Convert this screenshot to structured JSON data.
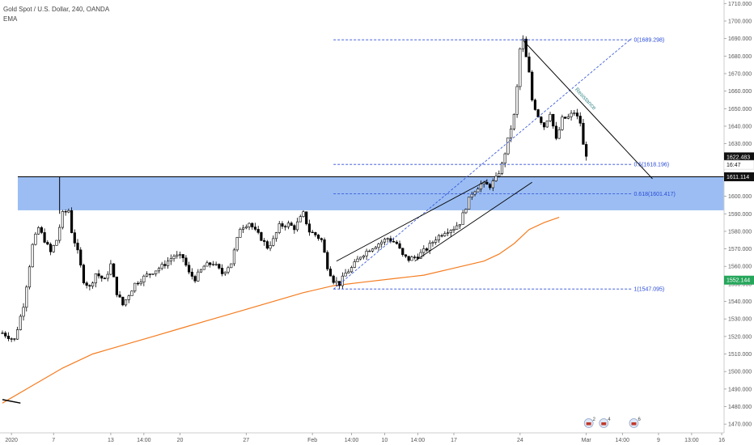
{
  "legend": {
    "title": "Gold Spot / U.S. Dollar, 240, OANDA",
    "indicator": "EMA"
  },
  "colors": {
    "candle": "#000000",
    "ema": "#f57c1f",
    "zone": "#7aa7ef",
    "fib": "#2a4bd7",
    "trend": "#000000",
    "current_badge": "#111111",
    "ema_badge": "#26a65b"
  },
  "chart_data": {
    "type": "candlestick",
    "y_axis": {
      "min": 1465,
      "max": 1712,
      "ticks": [
        1470,
        1480,
        1490,
        1500,
        1510,
        1520,
        1530,
        1540,
        1550,
        1560,
        1570,
        1580,
        1590,
        1600,
        1610,
        1620,
        1630,
        1640,
        1650,
        1660,
        1670,
        1680,
        1690,
        1700,
        1710
      ],
      "tick_labels": [
        "1470.000",
        "1480.000",
        "1490.000",
        "1500.000",
        "1510.000",
        "1520.000",
        "1530.000",
        "1540.000",
        "1550.000",
        "1560.000",
        "1570.000",
        "1580.000",
        "1590.000",
        "1600.000",
        "1610.000",
        "1620.000",
        "1630.000",
        "1640.000",
        "1650.000",
        "1660.000",
        "1670.000",
        "1680.000",
        "1690.000",
        "1700.000",
        "1710.000"
      ]
    },
    "x_axis": {
      "bars": 240,
      "labels": [
        {
          "bar": 3,
          "text": "2020"
        },
        {
          "bar": 17,
          "text": "7"
        },
        {
          "bar": 36,
          "text": "13"
        },
        {
          "bar": 47,
          "text": "14:00"
        },
        {
          "bar": 59,
          "text": "20"
        },
        {
          "bar": 81,
          "text": "27"
        },
        {
          "bar": 103,
          "text": "Feb"
        },
        {
          "bar": 116,
          "text": "14:00"
        },
        {
          "bar": 127,
          "text": "10"
        },
        {
          "bar": 138,
          "text": "14:00"
        },
        {
          "bar": 150,
          "text": "17"
        },
        {
          "bar": 172,
          "text": "24"
        },
        {
          "bar": 194,
          "text": "Mar"
        },
        {
          "bar": 206,
          "text": "14:00"
        },
        {
          "bar": 218,
          "text": "9"
        },
        {
          "bar": 229,
          "text": "13:00"
        },
        {
          "bar": 239,
          "text": "16"
        }
      ]
    },
    "waypoints": [
      [
        0,
        1522
      ],
      [
        4,
        1518
      ],
      [
        7,
        1538
      ],
      [
        10,
        1572
      ],
      [
        12,
        1582
      ],
      [
        14,
        1575
      ],
      [
        16,
        1568
      ],
      [
        18,
        1575
      ],
      [
        20,
        1590
      ],
      [
        22,
        1592
      ],
      [
        23,
        1580
      ],
      [
        25,
        1568
      ],
      [
        27,
        1552
      ],
      [
        29,
        1548
      ],
      [
        31,
        1556
      ],
      [
        34,
        1552
      ],
      [
        36,
        1561
      ],
      [
        38,
        1545
      ],
      [
        40,
        1538
      ],
      [
        44,
        1550
      ],
      [
        48,
        1555
      ],
      [
        53,
        1560
      ],
      [
        57,
        1566
      ],
      [
        60,
        1565
      ],
      [
        62,
        1556
      ],
      [
        64,
        1553
      ],
      [
        67,
        1560
      ],
      [
        70,
        1562
      ],
      [
        73,
        1556
      ],
      [
        76,
        1562
      ],
      [
        79,
        1582
      ],
      [
        82,
        1585
      ],
      [
        84,
        1580
      ],
      [
        86,
        1576
      ],
      [
        88,
        1571
      ],
      [
        90,
        1575
      ],
      [
        92,
        1583
      ],
      [
        95,
        1584
      ],
      [
        97,
        1582
      ],
      [
        100,
        1590
      ],
      [
        102,
        1580
      ],
      [
        104,
        1578
      ],
      [
        106,
        1575
      ],
      [
        108,
        1560
      ],
      [
        110,
        1552
      ],
      [
        112,
        1550
      ],
      [
        114,
        1556
      ],
      [
        116,
        1559
      ],
      [
        119,
        1566
      ],
      [
        122,
        1570
      ],
      [
        125,
        1573
      ],
      [
        128,
        1576
      ],
      [
        131,
        1573
      ],
      [
        133,
        1566
      ],
      [
        135,
        1564
      ],
      [
        138,
        1566
      ],
      [
        141,
        1570
      ],
      [
        144,
        1576
      ],
      [
        147,
        1580
      ],
      [
        150,
        1582
      ],
      [
        152,
        1585
      ],
      [
        154,
        1594
      ],
      [
        156,
        1602
      ],
      [
        159,
        1607
      ],
      [
        162,
        1606
      ],
      [
        164,
        1610
      ],
      [
        166,
        1618
      ],
      [
        168,
        1632
      ],
      [
        170,
        1646
      ],
      [
        171,
        1662
      ],
      [
        172,
        1684
      ],
      [
        173,
        1689
      ],
      [
        174,
        1679
      ],
      [
        175,
        1670
      ],
      [
        176,
        1655
      ],
      [
        178,
        1646
      ],
      [
        180,
        1640
      ],
      [
        182,
        1648
      ],
      [
        184,
        1632
      ],
      [
        186,
        1644
      ],
      [
        188,
        1645
      ],
      [
        190,
        1648
      ],
      [
        192,
        1642
      ],
      [
        193,
        1629
      ],
      [
        194,
        1624
      ]
    ],
    "ema": {
      "start_value": 1482,
      "end_value": 1588,
      "points": [
        [
          0,
          1482
        ],
        [
          10,
          1492
        ],
        [
          20,
          1502
        ],
        [
          30,
          1510
        ],
        [
          40,
          1515
        ],
        [
          50,
          1520
        ],
        [
          60,
          1525
        ],
        [
          70,
          1530
        ],
        [
          80,
          1535
        ],
        [
          90,
          1540
        ],
        [
          100,
          1545
        ],
        [
          110,
          1549
        ],
        [
          120,
          1551
        ],
        [
          130,
          1553
        ],
        [
          140,
          1555
        ],
        [
          150,
          1559
        ],
        [
          160,
          1563
        ],
        [
          165,
          1567
        ],
        [
          170,
          1573
        ],
        [
          175,
          1581
        ],
        [
          180,
          1585
        ],
        [
          185,
          1588
        ]
      ]
    },
    "support_zone": {
      "low": 1592,
      "high": 1611.114
    },
    "fibonacci": [
      {
        "level": "0",
        "value": 1689.298,
        "label": "0(1689.298)"
      },
      {
        "level": "0.5",
        "value": 1618.196,
        "label": "0.5(1618.196)"
      },
      {
        "level": "0.618",
        "value": 1601.417,
        "label": "0.618(1601.417)"
      },
      {
        "level": "1",
        "value": 1547.095,
        "label": "1(1547.095)"
      }
    ],
    "fib_label_positions": {
      "0": 0,
      "0.5": 1,
      "0.618": 2,
      "1": 3
    },
    "fib_x_range": [
      110,
      209
    ],
    "fib_diagonal": [
      [
        110,
        1547
      ],
      [
        209,
        1690
      ]
    ],
    "channel": {
      "upper": [
        [
          111,
          1563
        ],
        [
          161,
          1609
        ]
      ],
      "lower": [
        [
          137,
          1563
        ],
        [
          176,
          1608
        ]
      ]
    },
    "resistance_line": {
      "start": [
        173,
        1689
      ],
      "end": [
        216,
        1610
      ],
      "label": "Resistance"
    },
    "zone_spike": {
      "bar": 19,
      "high": 1611
    },
    "lower_left_line": [
      [
        0,
        1484
      ],
      [
        6,
        1482
      ]
    ],
    "price_badges": [
      {
        "value": 1622.483,
        "text": "1622.483",
        "style": "dark"
      },
      {
        "value": 1618.0,
        "text": "16:47",
        "style": "light"
      },
      {
        "value": 1611.114,
        "text": "1611.114",
        "style": "dark"
      },
      {
        "value": 1552.144,
        "text": "1552.144",
        "style": "green"
      }
    ],
    "event_markers": [
      {
        "bar": 194,
        "count": "2"
      },
      {
        "bar": 199,
        "count": "4"
      },
      {
        "bar": 209,
        "count": "6"
      }
    ]
  }
}
